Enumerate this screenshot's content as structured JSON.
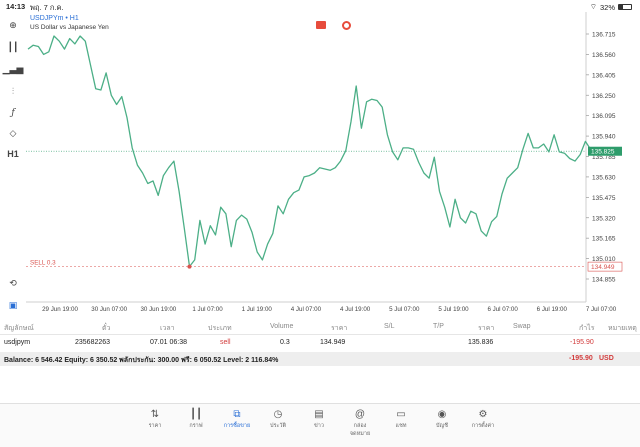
{
  "status_bar": {
    "time": "14:13",
    "date": "พฤ. 7 ก.ค.",
    "battery": "32%",
    "battery_level": 0.32
  },
  "chart": {
    "symbol": "USDJPYm • H1",
    "description": "US Dollar vs Japanese Yen",
    "line_color": "#4caf87",
    "sell_color": "#d9534f",
    "price_label_bg": "#2e9c6b",
    "price_levels": [
      "136.715",
      "136.560",
      "136.405",
      "136.250",
      "136.095",
      "135.940",
      "135.785",
      "135.630",
      "135.475",
      "135.320",
      "135.165",
      "135.010",
      "134.855"
    ],
    "current_price": "135.825",
    "sell_price": "134.949",
    "sell_label": "SELL 0.3",
    "time_labels": [
      "29 Jun 19:00",
      "30 Jun 07:00",
      "30 Jun 19:00",
      "1 Jul 07:00",
      "1 Jul 19:00",
      "4 Jul 07:00",
      "4 Jul 19:00",
      "5 Jul 07:00",
      "5 Jul 19:00",
      "6 Jul 07:00",
      "6 Jul 19:00",
      "7 Jul 07:00"
    ],
    "prices": [
      136.6,
      136.63,
      136.62,
      136.56,
      136.58,
      136.7,
      136.66,
      136.6,
      136.68,
      136.64,
      136.7,
      136.66,
      136.48,
      136.3,
      136.29,
      136.42,
      136.25,
      136.18,
      136.24,
      136.08,
      135.85,
      135.72,
      135.66,
      135.58,
      135.6,
      135.49,
      135.64,
      135.7,
      135.75,
      135.52,
      135.24,
      134.95,
      135.0,
      135.3,
      135.12,
      135.26,
      135.19,
      135.4,
      135.35,
      135.1,
      135.3,
      135.34,
      135.31,
      135.21,
      135.06,
      135.0,
      135.12,
      135.2,
      135.41,
      135.35,
      135.46,
      135.51,
      135.53,
      135.63,
      135.64,
      135.66,
      135.7,
      135.69,
      135.68,
      135.7,
      135.75,
      135.83,
      136.05,
      136.32,
      136.0,
      136.2,
      136.22,
      136.21,
      136.16,
      135.95,
      135.82,
      135.76,
      135.85,
      135.85,
      135.84,
      135.74,
      135.66,
      135.62,
      135.78,
      135.52,
      135.4,
      135.25,
      135.46,
      135.32,
      135.28,
      135.37,
      135.35,
      135.22,
      135.18,
      135.29,
      135.33,
      135.5,
      135.62,
      135.66,
      135.7,
      135.84,
      135.96,
      135.85,
      135.85,
      135.88,
      135.82,
      135.95,
      135.82,
      135.81,
      135.77,
      135.75,
      135.8,
      135.9,
      135.84,
      135.82,
      135.83
    ]
  },
  "table": {
    "headers": [
      "สัญลักษณ์",
      "ตั๋ว",
      "เวลา",
      "ประเภท",
      "Volume",
      "ราคา",
      "S/L",
      "T/P",
      "ราคา",
      "Swap",
      "กำไร",
      "หมายเหตุ"
    ],
    "row": {
      "symbol": "usdjpym",
      "ticket": "235682263",
      "time": "07.01 06:38",
      "type": "sell",
      "volume": "0.3",
      "price": "134.949",
      "sl": "",
      "tp": "",
      "current_price": "135.836",
      "swap": "",
      "profit": "-195.90",
      "comment": ""
    },
    "type_color": "#d23b3b",
    "profit_color": "#d23b3b"
  },
  "balance": {
    "text": "Balance: 6 546.42  Equity: 6 350.52  พลักประกัน: 300.00  ฟรี: 6 050.52  Level: 2 116.84%",
    "profit": "-195.90",
    "currency": "USD"
  },
  "nav": [
    {
      "label": "ราคา",
      "icon": "quotes-icon"
    },
    {
      "label": "กราฟ",
      "icon": "chart-icon"
    },
    {
      "label": "การซื้อขาย",
      "icon": "trade-icon",
      "active": true
    },
    {
      "label": "ประวัติ",
      "icon": "history-icon"
    },
    {
      "label": "ข่าว",
      "icon": "news-icon"
    },
    {
      "label": "กล่องจดหมาย",
      "icon": "mailbox-icon"
    },
    {
      "label": "แชท",
      "icon": "chat-icon"
    },
    {
      "label": "บัญชี",
      "icon": "account-icon"
    },
    {
      "label": "การตั้งค่า",
      "icon": "settings-icon"
    }
  ],
  "accent_color": "#2a6fd6"
}
